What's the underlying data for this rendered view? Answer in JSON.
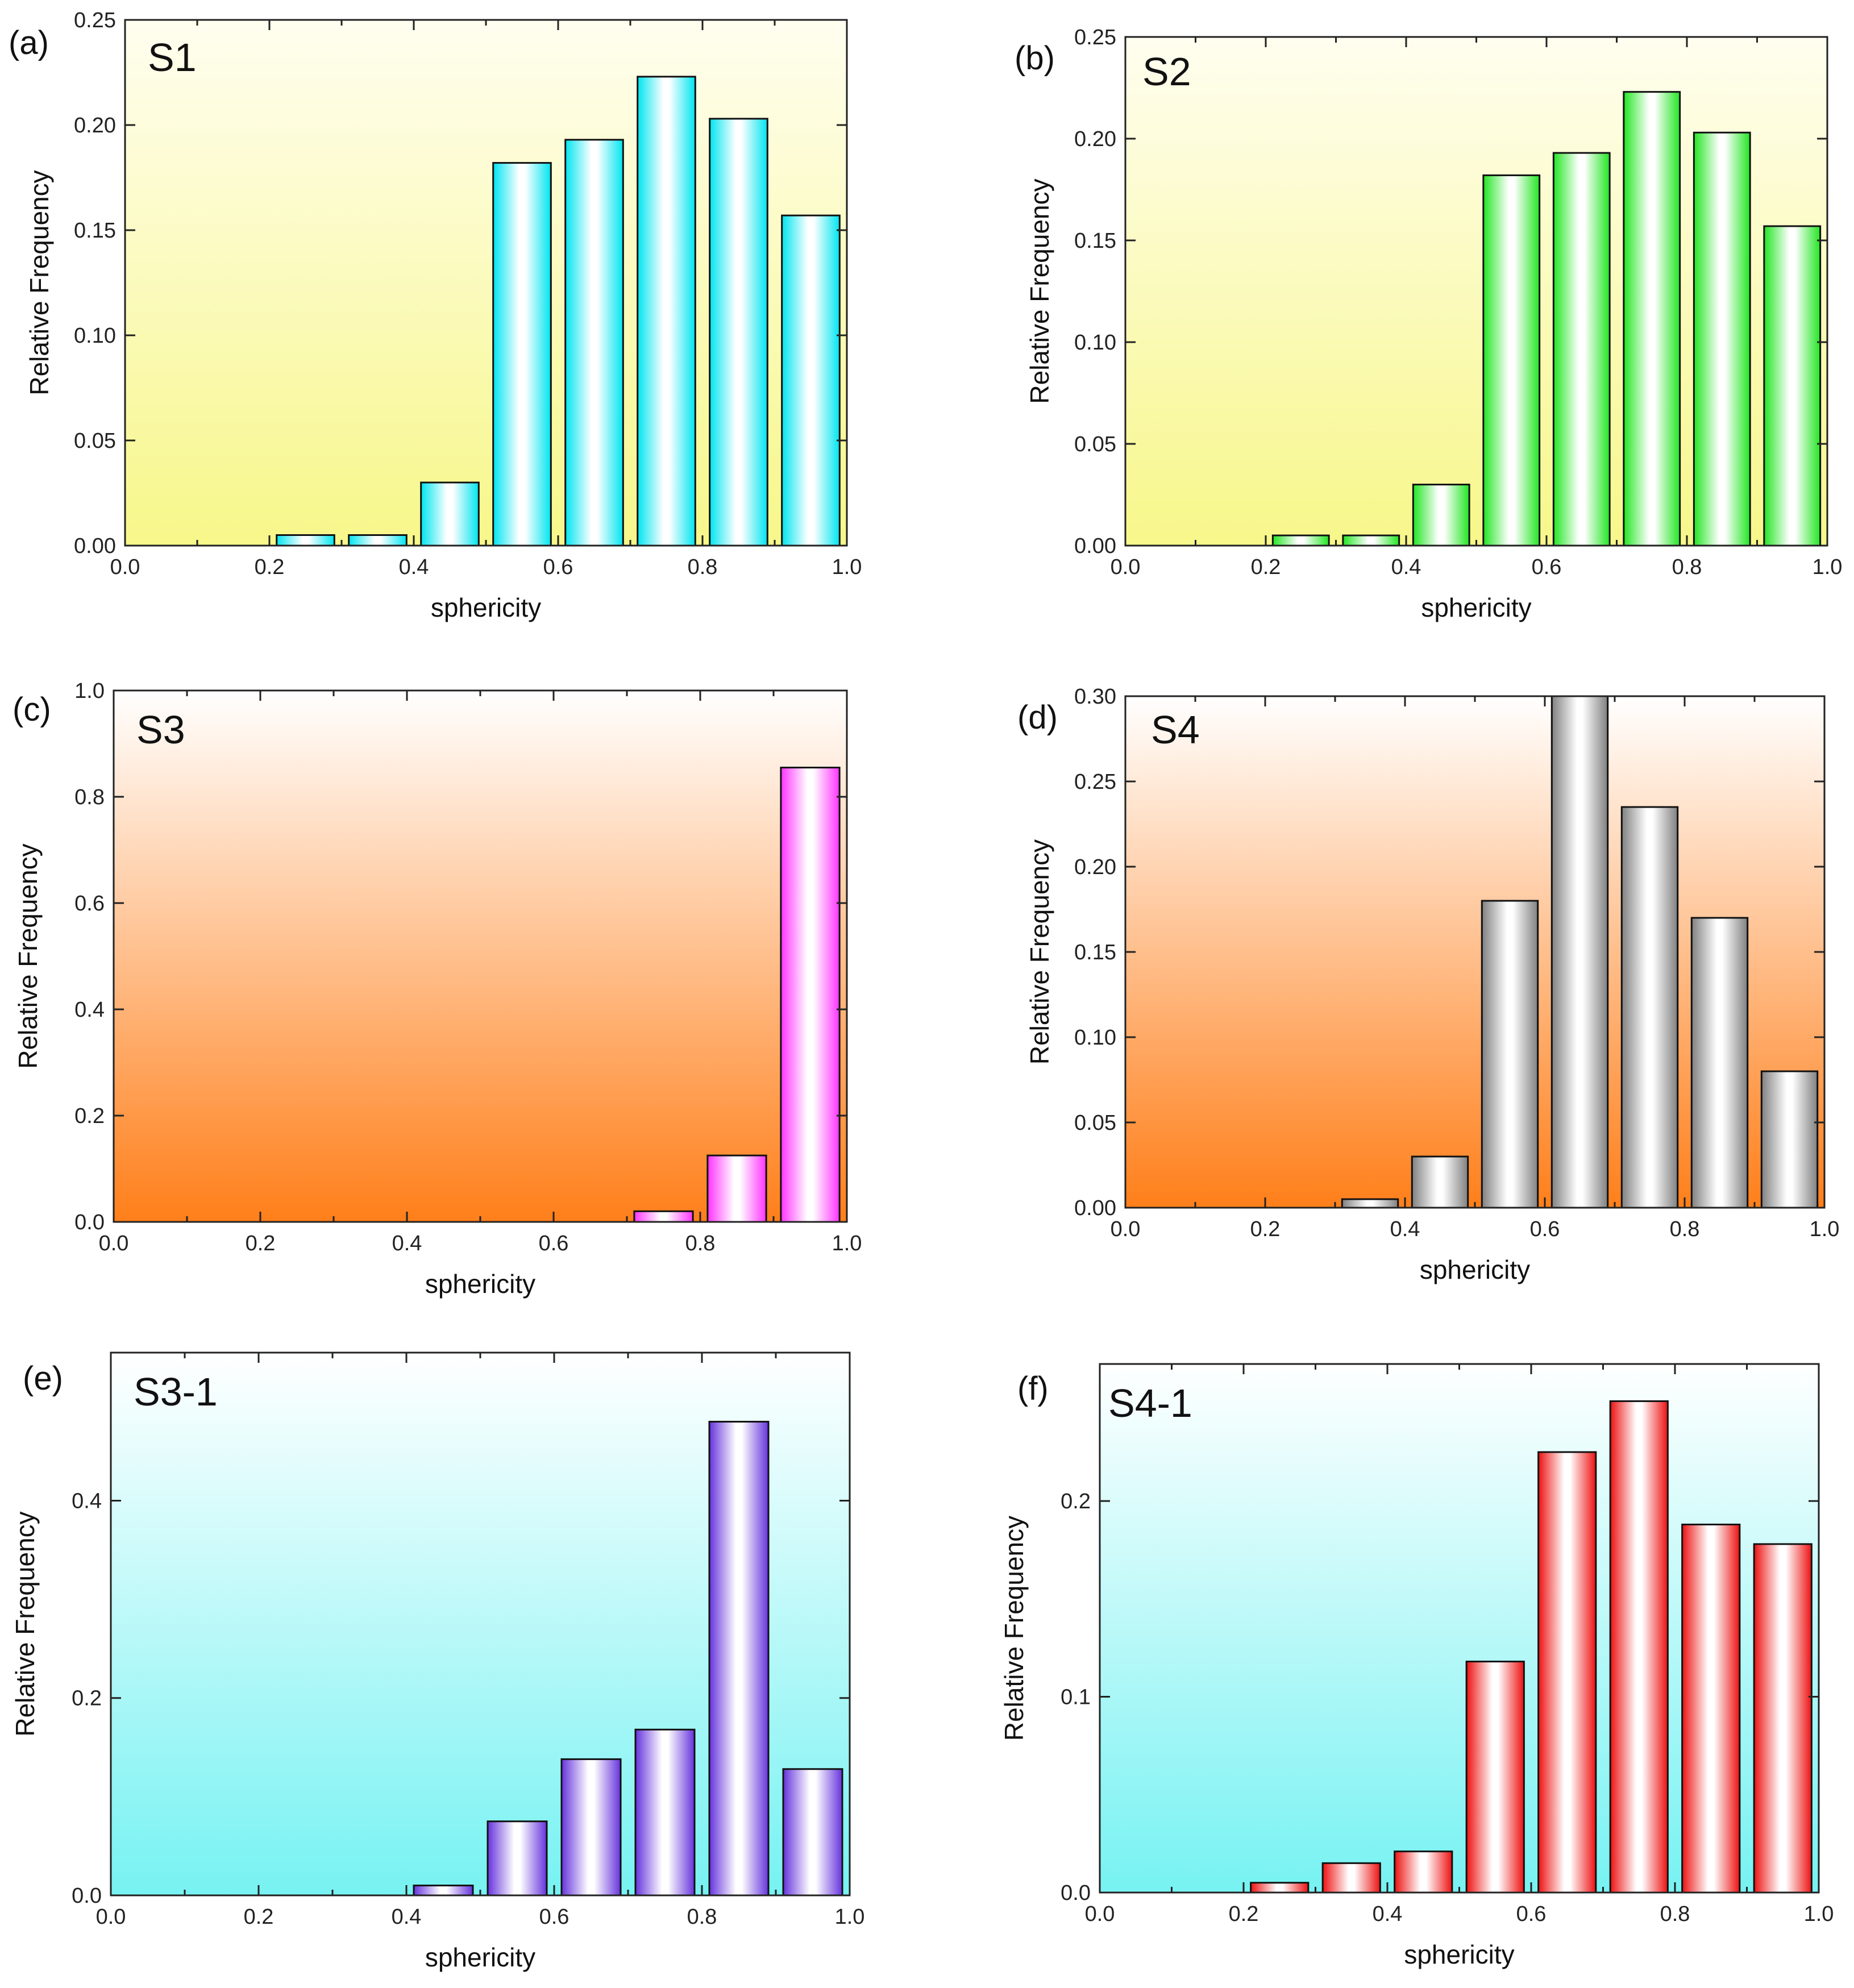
{
  "chart_data": [
    {
      "type": "bar",
      "panel": "(a)",
      "title": "S1",
      "xlabel": "sphericity",
      "ylabel": "Relative Frequency",
      "xlim": [
        0.0,
        1.0
      ],
      "ylim": [
        0.0,
        0.25
      ],
      "xticks": [
        "0.0",
        "0.2",
        "0.4",
        "0.6",
        "0.8",
        "1.0"
      ],
      "yticks": [
        "0.00",
        "0.05",
        "0.10",
        "0.15",
        "0.20",
        "0.25"
      ],
      "x": [
        0.25,
        0.35,
        0.45,
        0.55,
        0.65,
        0.75,
        0.85,
        0.95
      ],
      "values": [
        0.005,
        0.005,
        0.03,
        0.182,
        0.193,
        0.223,
        0.203,
        0.157
      ],
      "bar_color": "#00e5f0",
      "background": [
        "#fffef0",
        "#f7f78a"
      ]
    },
    {
      "type": "bar",
      "panel": "(b)",
      "title": "S2",
      "xlabel": "sphericity",
      "ylabel": "Relative Frequency",
      "xlim": [
        0.0,
        1.0
      ],
      "ylim": [
        0.0,
        0.25
      ],
      "xticks": [
        "0.0",
        "0.2",
        "0.4",
        "0.6",
        "0.8",
        "1.0"
      ],
      "yticks": [
        "0.00",
        "0.05",
        "0.10",
        "0.15",
        "0.20",
        "0.25"
      ],
      "x": [
        0.25,
        0.35,
        0.45,
        0.55,
        0.65,
        0.75,
        0.85,
        0.95
      ],
      "values": [
        0.005,
        0.005,
        0.03,
        0.182,
        0.193,
        0.223,
        0.203,
        0.157
      ],
      "bar_color": "#22e622",
      "background": [
        "#fffef0",
        "#f7f78a"
      ]
    },
    {
      "type": "bar",
      "panel": "(c)",
      "title": "S3",
      "xlabel": "sphericity",
      "ylabel": "Relative Frequency",
      "xlim": [
        0.0,
        1.0
      ],
      "ylim": [
        0.0,
        1.0
      ],
      "xticks": [
        "0.0",
        "0.2",
        "0.4",
        "0.6",
        "0.8",
        "1.0"
      ],
      "yticks": [
        "0.0",
        "0.2",
        "0.4",
        "0.6",
        "0.8",
        "1.0"
      ],
      "x": [
        0.75,
        0.85,
        0.95
      ],
      "values": [
        0.02,
        0.125,
        0.855
      ],
      "bar_color": "#ff33ff",
      "background": [
        "#ffffff",
        "#ff7f1a"
      ]
    },
    {
      "type": "bar",
      "panel": "(d)",
      "title": "S4",
      "xlabel": "sphericity",
      "ylabel": "Relative Frequency",
      "xlim": [
        0.0,
        1.0
      ],
      "ylim": [
        0.0,
        0.3
      ],
      "xticks": [
        "0.0",
        "0.2",
        "0.4",
        "0.6",
        "0.8",
        "1.0"
      ],
      "yticks": [
        "0.00",
        "0.05",
        "0.10",
        "0.15",
        "0.20",
        "0.25",
        "0.30"
      ],
      "x": [
        0.35,
        0.45,
        0.55,
        0.65,
        0.75,
        0.85,
        0.95
      ],
      "values": [
        0.005,
        0.03,
        0.18,
        0.3,
        0.235,
        0.17,
        0.08
      ],
      "bar_color": "#808080",
      "background": [
        "#ffffff",
        "#ff7f1a"
      ]
    },
    {
      "type": "bar",
      "panel": "(e)",
      "title": "S3-1",
      "xlabel": "sphericity",
      "ylabel": "Relative Frequency",
      "xlim": [
        0.0,
        1.0
      ],
      "ylim": [
        0.0,
        0.55
      ],
      "xticks": [
        "0.0",
        "0.2",
        "0.4",
        "0.6",
        "0.8",
        "1.0"
      ],
      "yticks": [
        "0.0",
        "0.2",
        "0.4"
      ],
      "ytick_values": [
        0.0,
        0.2,
        0.4
      ],
      "x": [
        0.45,
        0.55,
        0.65,
        0.75,
        0.85,
        0.95
      ],
      "values": [
        0.01,
        0.075,
        0.138,
        0.168,
        0.48,
        0.128
      ],
      "bar_color": "#6633dd",
      "background": [
        "#ffffff",
        "#77f2f2"
      ]
    },
    {
      "type": "bar",
      "panel": "(f)",
      "title": "S4-1",
      "xlabel": "sphericity",
      "ylabel": "Relative Frequency",
      "xlim": [
        0.0,
        1.0
      ],
      "ylim": [
        0.0,
        0.27
      ],
      "xticks": [
        "0.0",
        "0.2",
        "0.4",
        "0.6",
        "0.8",
        "1.0"
      ],
      "yticks": [
        "0.0",
        "0.1",
        "0.2"
      ],
      "ytick_values": [
        0.0,
        0.1,
        0.2
      ],
      "x": [
        0.25,
        0.35,
        0.45,
        0.55,
        0.65,
        0.75,
        0.85,
        0.95
      ],
      "values": [
        0.005,
        0.015,
        0.021,
        0.118,
        0.225,
        0.251,
        0.188,
        0.178
      ],
      "bar_color": "#ee1111",
      "background": [
        "#ffffff",
        "#77f2f2"
      ]
    }
  ]
}
